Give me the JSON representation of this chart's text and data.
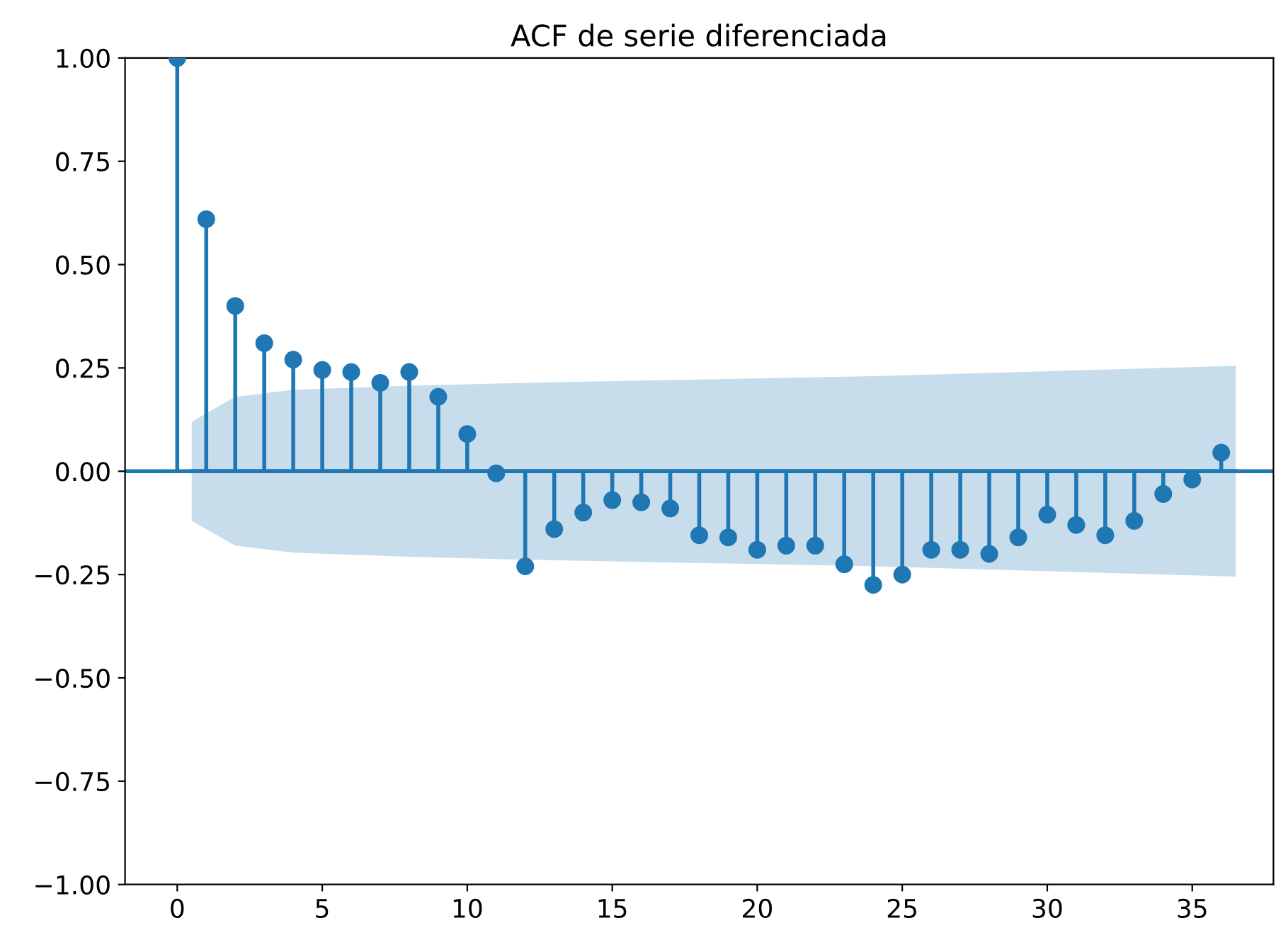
{
  "chart_data": {
    "type": "lollipop",
    "title": "ACF de serie diferenciada",
    "x": [
      0,
      1,
      2,
      3,
      4,
      5,
      6,
      7,
      8,
      9,
      10,
      11,
      12,
      13,
      14,
      15,
      16,
      17,
      18,
      19,
      20,
      21,
      22,
      23,
      24,
      25,
      26,
      27,
      28,
      29,
      30,
      31,
      32,
      33,
      34,
      35,
      36
    ],
    "series": [
      {
        "color": "#1f77b4",
        "values": [
          1.0,
          0.61,
          0.4,
          0.31,
          0.27,
          0.245,
          0.24,
          0.214,
          0.24,
          0.18,
          0.09,
          -0.005,
          -0.23,
          -0.14,
          -0.1,
          -0.07,
          -0.075,
          -0.09,
          -0.155,
          -0.16,
          -0.19,
          -0.18,
          -0.18,
          -0.225,
          -0.275,
          -0.25,
          -0.19,
          -0.19,
          -0.2,
          -0.16,
          -0.105,
          -0.13,
          -0.155,
          -0.12,
          -0.055,
          -0.02,
          0.045
        ]
      },
      {
        "type": "line",
        "marker": "none",
        "color": "#1f77b4",
        "x": [
          0.5,
          1,
          2,
          4,
          8,
          12,
          24,
          36.5
        ],
        "values": [
          0,
          0,
          0,
          0,
          0,
          0,
          0,
          0
        ],
        "lower": [
          -0.12,
          -0.14,
          -0.18,
          -0.197,
          -0.207,
          -0.214,
          -0.23,
          -0.255
        ],
        "upper": [
          0.12,
          0.14,
          0.18,
          0.197,
          0.207,
          0.214,
          0.23,
          0.255
        ]
      }
    ],
    "ref_lines": [
      {
        "axis": "y",
        "value": 0,
        "color": "#1f77b4"
      }
    ],
    "xlim": [
      -1.8,
      37.8
    ],
    "xticks": [
      0,
      5,
      10,
      15,
      20,
      25,
      30,
      35
    ],
    "ylim": [
      -1.0,
      1.0
    ],
    "yticks": [
      {
        "value": -1.0,
        "label": "−1.00"
      },
      {
        "value": -0.75,
        "label": "−0.75"
      },
      {
        "value": -0.5,
        "label": "−0.50"
      },
      {
        "value": -0.25,
        "label": "−0.25"
      },
      {
        "value": 0.0,
        "label": "0.00"
      },
      {
        "value": 0.25,
        "label": "0.25"
      },
      {
        "value": 0.5,
        "label": "0.50"
      },
      {
        "value": 0.75,
        "label": "0.75"
      },
      {
        "value": 1.0,
        "label": "1.00"
      }
    ],
    "marker": "circle",
    "grid": false,
    "legend": false
  }
}
